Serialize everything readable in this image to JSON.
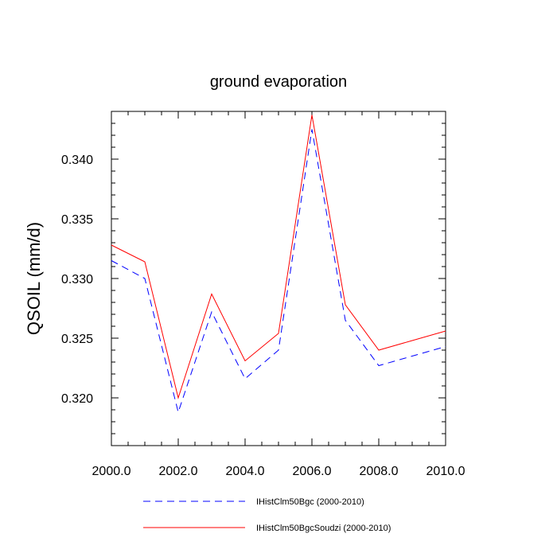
{
  "chart_data": {
    "type": "line",
    "title": "ground evaporation",
    "ylabel": "QSOIL  (mm/d)",
    "xlabel": "",
    "xlim": [
      2000,
      2010
    ],
    "ylim": [
      0.316,
      0.344
    ],
    "x_ticks": [
      2000,
      2002,
      2004,
      2006,
      2008,
      2010
    ],
    "x_tick_labels": [
      "2000.0",
      "2002.0",
      "2004.0",
      "2006.0",
      "2008.0",
      "2010.0"
    ],
    "y_ticks": [
      0.32,
      0.325,
      0.33,
      0.335,
      0.34
    ],
    "y_tick_labels": [
      "0.320",
      "0.325",
      "0.330",
      "0.335",
      "0.340"
    ],
    "grid": false,
    "legend_position": "bottom",
    "x": [
      2000,
      2001,
      2002,
      2003,
      2004,
      2005,
      2006,
      2007,
      2008,
      2009,
      2010
    ],
    "series": [
      {
        "name": "IHistClm50Bgc (2000-2010)",
        "color": "#0000ff",
        "style": "dashed",
        "values": [
          0.3315,
          0.33,
          0.3188,
          0.3272,
          0.3216,
          0.324,
          0.3425,
          0.3265,
          0.3227,
          0.3235,
          0.3243
        ]
      },
      {
        "name": "IHistClm50BgcSoudzi (2000-2010)",
        "color": "#ff0000",
        "style": "solid",
        "values": [
          0.3328,
          0.3314,
          0.32,
          0.3287,
          0.3231,
          0.3254,
          0.3437,
          0.3278,
          0.324,
          0.3248,
          0.3256
        ]
      }
    ]
  }
}
